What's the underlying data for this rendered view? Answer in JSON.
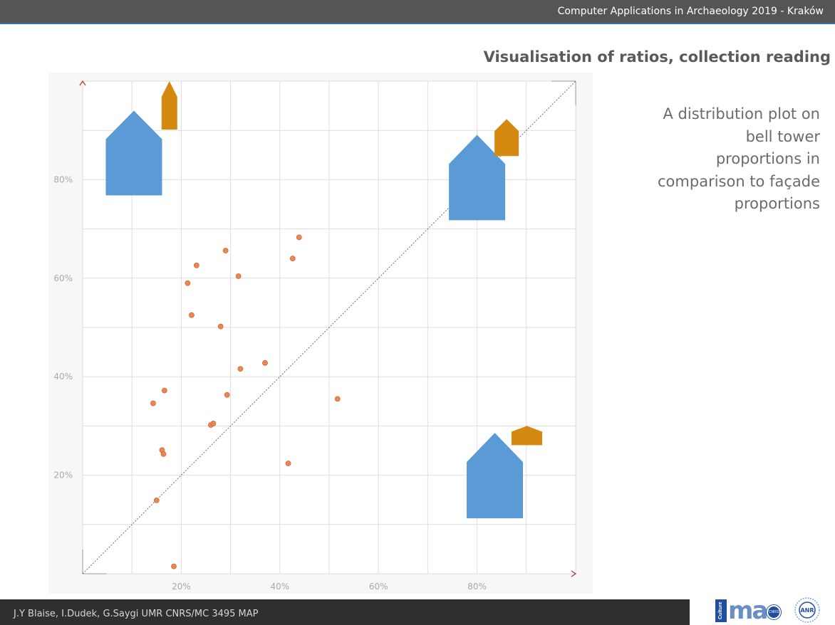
{
  "header": {
    "conference": "Computer Applications in Archaeology  2019 - Kraków"
  },
  "slide": {
    "title": "Visualisation of ratios, collection reading",
    "description": [
      "A distribution plot on",
      "bell tower",
      "proportions in",
      "comparison to façade",
      "proportions"
    ]
  },
  "footer": {
    "authors": "J.Y Blaise, I.Dudek, G.Saygi UMR CNRS/MC 3495 MAP"
  },
  "logos": {
    "map_stripe": "Culture",
    "map_word": "ma",
    "map_circle": "CNRS",
    "anr": "ANR"
  },
  "colors": {
    "facade": "#5b9bd5",
    "tower": "#d68910",
    "point_fill": "#ee8650",
    "point_stroke": "#cc6a3c",
    "diagonal": "#4a4a4a",
    "axis_arrow": "#b0302a",
    "grid": "#dddddd",
    "tick_label": "#a9a9a9"
  },
  "chart_data": {
    "type": "scatter",
    "title": "",
    "xlabel": "",
    "ylabel": "",
    "xlim": [
      0,
      100
    ],
    "ylim": [
      0,
      100
    ],
    "x_ticks": [
      20,
      40,
      60,
      80
    ],
    "y_ticks": [
      20,
      40,
      60,
      80
    ],
    "x_tick_labels": [
      "20%",
      "40%",
      "60%",
      "80%"
    ],
    "y_tick_labels": [
      "20%",
      "40%",
      "60%",
      "80%"
    ],
    "grid": true,
    "diagonal_reference": true,
    "points": [
      {
        "x": 18.5,
        "y": 1.5
      },
      {
        "x": 15.0,
        "y": 14.9
      },
      {
        "x": 16.1,
        "y": 25.1
      },
      {
        "x": 16.4,
        "y": 24.3
      },
      {
        "x": 14.3,
        "y": 34.6
      },
      {
        "x": 16.6,
        "y": 37.2
      },
      {
        "x": 26.0,
        "y": 30.2
      },
      {
        "x": 26.5,
        "y": 30.5
      },
      {
        "x": 29.3,
        "y": 36.3
      },
      {
        "x": 32.0,
        "y": 41.6
      },
      {
        "x": 37.0,
        "y": 42.8
      },
      {
        "x": 41.7,
        "y": 22.4
      },
      {
        "x": 51.7,
        "y": 35.5
      },
      {
        "x": 28.0,
        "y": 50.2
      },
      {
        "x": 22.1,
        "y": 52.5
      },
      {
        "x": 21.3,
        "y": 59.0
      },
      {
        "x": 23.1,
        "y": 62.6
      },
      {
        "x": 29.0,
        "y": 65.6
      },
      {
        "x": 31.6,
        "y": 60.4
      },
      {
        "x": 42.6,
        "y": 64.0
      },
      {
        "x": 43.9,
        "y": 68.3
      }
    ],
    "glyphs": [
      {
        "name": "top-left",
        "facade_x": 10.4,
        "facade_top_y": 94.0,
        "tower_x": 17.6,
        "tower_top_y": 100.0
      },
      {
        "name": "top-right",
        "facade_x": 80.0,
        "facade_top_y": 89.1,
        "tower_x": 86.0,
        "tower_top_y": 92.3
      },
      {
        "name": "bottom-right",
        "facade_x": 83.6,
        "facade_top_y": 28.6,
        "tower_x": 90.1,
        "tower_top_y": 30.0
      }
    ]
  }
}
